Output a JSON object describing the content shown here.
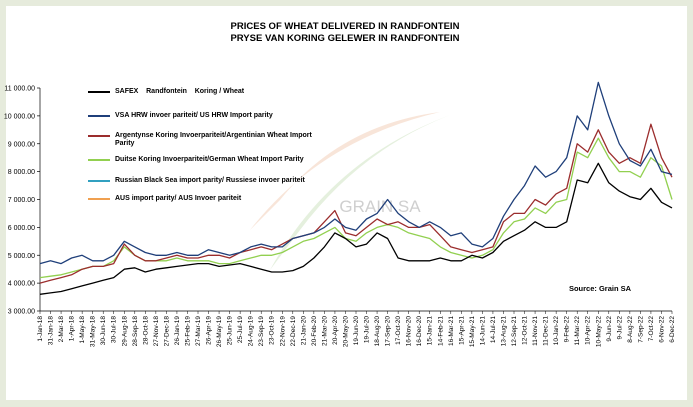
{
  "chart_data": {
    "type": "line",
    "title": "PRICES OF WHEAT DELIVERED IN RANDFONTEIN",
    "subtitle": "PRYSE VAN KORING GELEWER IN RANDFONTEIN",
    "source": "Source: Grain SA",
    "watermark": "GRAIN SA",
    "categories": [
      "1-Jan-18",
      "31-Jan-18",
      "2-Mar-18",
      "1-Apr-18",
      "1-May-18",
      "31-May-18",
      "30-Jun-18",
      "30-Jul-18",
      "29-Aug-18",
      "28-Sep-18",
      "28-Oct-18",
      "27-Nov-18",
      "27-Dec-18",
      "26-Jan-19",
      "25-Feb-19",
      "27-Mar-19",
      "26-Apr-19",
      "26-May-19",
      "25-Jun-19",
      "25-Jul-19",
      "24-Aug-19",
      "23-Sep-19",
      "23-Oct-19",
      "22-Nov-19",
      "22-Dec-19",
      "21-Jan-20",
      "20-Feb-20",
      "21-Mar-20",
      "20-Apr-20",
      "20-May-20",
      "19-Jun-20",
      "19-Jul-20",
      "18-Aug-20",
      "17-Sep-20",
      "17-Oct-20",
      "16-Nov-20",
      "16-Dec-20",
      "15-Jan-21",
      "14-Feb-21",
      "16-Mar-21",
      "15-Apr-21",
      "15-May-21",
      "14-Jun-21",
      "14-Jul-21",
      "13-Aug-21",
      "12-Sep-21",
      "12-Oct-21",
      "11-Nov-21",
      "11-Dec-21",
      "10-Jan-22",
      "9-Feb-22",
      "11-Mar-22",
      "10-Apr-22",
      "10-May-22",
      "9-Jun-22",
      "9-Jul-22",
      "8-Aug-22",
      "7-Sep-22",
      "7-Oct-22",
      "6-Nov-22",
      "6-Dec-22"
    ],
    "series": [
      {
        "name": "SAFEX    Randfontein    Koring / Wheat",
        "color": "#000000",
        "values": [
          3600,
          3650,
          3700,
          3800,
          3900,
          4000,
          4100,
          4200,
          4500,
          4550,
          4400,
          4500,
          4550,
          4600,
          4650,
          4700,
          4700,
          4600,
          4650,
          4700,
          4600,
          4500,
          4400,
          4400,
          4450,
          4600,
          4900,
          5300,
          5800,
          5600,
          5300,
          5400,
          5800,
          5600,
          4900,
          4800,
          4800,
          4800,
          4900,
          4800,
          4800,
          5000,
          4900,
          5100,
          5500,
          5700,
          5900,
          6200,
          6000,
          6000,
          6200,
          7700,
          7600,
          8300,
          7600,
          7300,
          7100,
          7000,
          7400,
          6900,
          6700
        ]
      },
      {
        "name": "VSA HRW invoer pariteit/ US HRW Import parity",
        "color": "#1f3f7a",
        "values": [
          4700,
          4800,
          4700,
          4900,
          5000,
          4800,
          4800,
          5000,
          5500,
          5300,
          5100,
          5000,
          5000,
          5100,
          5000,
          5000,
          5200,
          5100,
          5000,
          5100,
          5300,
          5400,
          5300,
          5300,
          5600,
          5700,
          5800,
          6000,
          6300,
          6000,
          5900,
          6300,
          6500,
          7000,
          6500,
          6200,
          6000,
          6200,
          6000,
          5700,
          5800,
          5400,
          5300,
          5600,
          6400,
          7000,
          7500,
          8200,
          7800,
          8000,
          8500,
          10000,
          9500,
          11200,
          10000,
          9000,
          8400,
          8200,
          8800,
          8000,
          7900
        ]
      },
      {
        "name": "Argentynse Koring Invoerpariteit/Argentinian Wheat Import Parity",
        "color": "#9b2d2d",
        "values": [
          4000,
          4100,
          4200,
          4300,
          4500,
          4600,
          4600,
          4700,
          5400,
          5000,
          4800,
          4800,
          4900,
          5000,
          4900,
          4900,
          5000,
          5000,
          4900,
          5100,
          5200,
          5300,
          5200,
          5400,
          5600,
          5700,
          5800,
          6200,
          6600,
          5800,
          5700,
          6000,
          6300,
          6100,
          6200,
          6000,
          6000,
          6100,
          5700,
          5300,
          5200,
          5100,
          5200,
          5300,
          6200,
          6500,
          6500,
          7000,
          6800,
          7200,
          7400,
          9000,
          8700,
          9500,
          8700,
          8300,
          8500,
          8300,
          9700,
          8500,
          7800
        ]
      },
      {
        "name": "Duitse Koring Invoerpariteit/German Wheat Import Parity",
        "color": "#92d050",
        "values": [
          4200,
          4250,
          4300,
          4400,
          4500,
          4600,
          4600,
          4800,
          5300,
          5000,
          4800,
          4800,
          4800,
          4900,
          4800,
          4800,
          4800,
          4700,
          4700,
          4800,
          4900,
          5000,
          5000,
          5100,
          5300,
          5500,
          5600,
          5800,
          6000,
          5600,
          5500,
          5800,
          6000,
          6100,
          6000,
          5800,
          5700,
          5600,
          5300,
          5100,
          5000,
          4900,
          5000,
          5200,
          5800,
          6200,
          6300,
          6700,
          6500,
          6900,
          7000,
          8700,
          8500,
          9200,
          8500,
          8000,
          8000,
          7800,
          8500,
          8200,
          7000
        ]
      },
      {
        "name": "Russian Black Sea import parity/ Russiese invoer pariteit",
        "color": "#31a0c0",
        "values": [
          null,
          null,
          null,
          null,
          null,
          null,
          null,
          null,
          null,
          null,
          null,
          null,
          null,
          null,
          null,
          null,
          null,
          null,
          null,
          null,
          null,
          null,
          null,
          null,
          null,
          null,
          null,
          null,
          null,
          null,
          null,
          null,
          null,
          null,
          null,
          null,
          null,
          null,
          null,
          null,
          null,
          null,
          null,
          null,
          null,
          null,
          null,
          null,
          null,
          null,
          null,
          null,
          null,
          null,
          null,
          null,
          null,
          null,
          null,
          null,
          null
        ]
      },
      {
        "name": "AUS import parity/ AUS Invoer pariteit",
        "color": "#f0a050",
        "values": [
          null,
          null,
          null,
          null,
          null,
          null,
          null,
          null,
          null,
          null,
          null,
          null,
          null,
          null,
          null,
          null,
          null,
          null,
          null,
          null,
          null,
          null,
          null,
          null,
          null,
          null,
          null,
          null,
          null,
          null,
          null,
          null,
          null,
          null,
          null,
          null,
          null,
          null,
          null,
          null,
          null,
          null,
          null,
          null,
          null,
          null,
          null,
          null,
          null,
          null,
          null,
          null,
          null,
          null,
          null,
          null,
          null,
          null,
          null,
          null,
          null
        ]
      }
    ],
    "ylim": [
      3000,
      11000
    ],
    "yticks": [
      {
        "value": 3000,
        "label": "3 000.00"
      },
      {
        "value": 4000,
        "label": "4 000.00"
      },
      {
        "value": 5000,
        "label": "5 000.00"
      },
      {
        "value": 6000,
        "label": "6 000.00"
      },
      {
        "value": 7000,
        "label": "7 000.00"
      },
      {
        "value": 8000,
        "label": "8 000.00"
      },
      {
        "value": 9000,
        "label": "9 000.00"
      },
      {
        "value": 10000,
        "label": "10 000.00"
      },
      {
        "value": 11000,
        "label": "11 000.00"
      }
    ]
  }
}
